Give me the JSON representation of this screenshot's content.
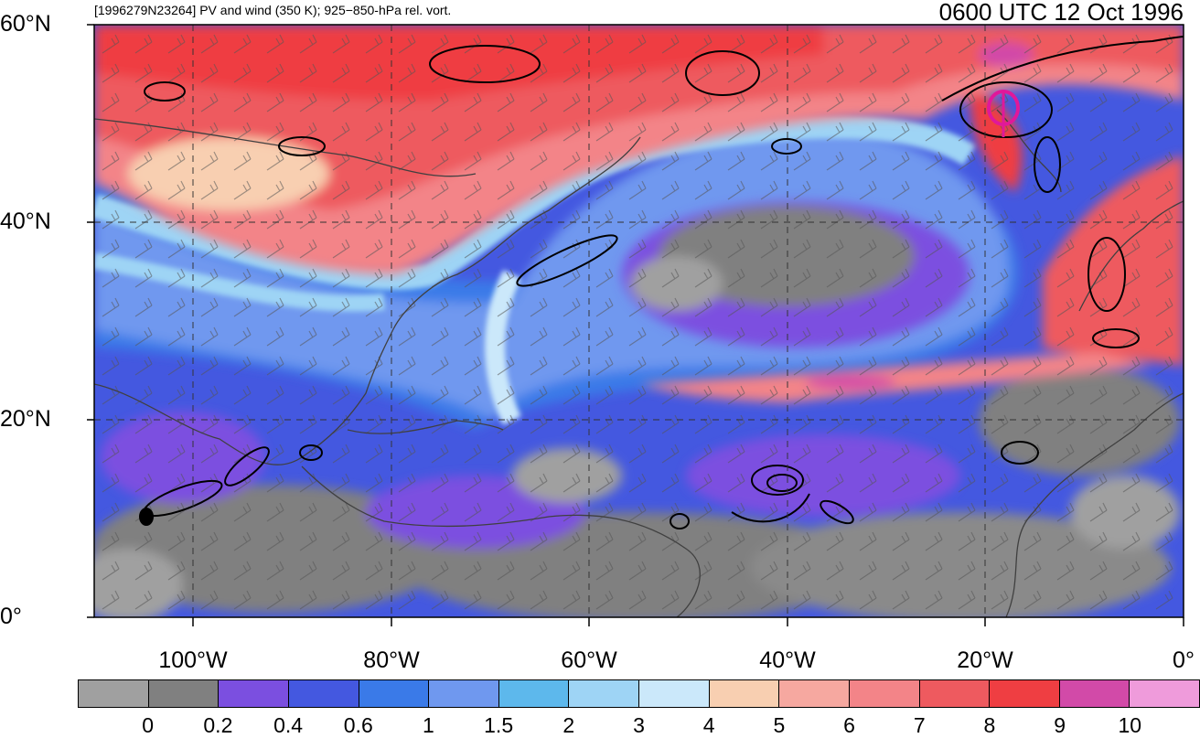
{
  "header": {
    "subtitle": "[1996279N23264] PV and wind (350 K); 925−850-hPa rel. vort.",
    "valid_time": "0600 UTC 12 Oct 1996"
  },
  "axes": {
    "lat_labels": [
      "60°N",
      "40°N",
      "20°N",
      "0°"
    ],
    "lon_labels": [
      "100°W",
      "80°W",
      "60°W",
      "40°W",
      "20°W",
      "0°"
    ],
    "lat_values": [
      60,
      40,
      20,
      0
    ],
    "lon_values": [
      -100,
      -80,
      -60,
      -40,
      -20,
      0
    ],
    "lon_range": [
      -110,
      0
    ],
    "lat_range": [
      0,
      60
    ]
  },
  "colorbar": {
    "labels": [
      "0",
      "0.2",
      "0.4",
      "0.6",
      "1",
      "1.5",
      "2",
      "3",
      "4",
      "5",
      "6",
      "7",
      "8",
      "9",
      "10"
    ],
    "colors": [
      "#a0a0a0",
      "#808080",
      "#7b4fe0",
      "#4458e0",
      "#3a7ae8",
      "#6f98ef",
      "#5db8ec",
      "#9ed4f5",
      "#cbe8fa",
      "#f8cfb1",
      "#f6a8a0",
      "#f38488",
      "#ee5a5f",
      "#ef3e42",
      "#d24aa8",
      "#ef9bdb"
    ]
  },
  "map_colors": {
    "ocean_low": "#808080",
    "tropics": "#4458e0",
    "jet_blue": "#3a7ae8",
    "jet_light": "#9ed4f5",
    "midlat_red": "#ef3e42",
    "midlat_pink": "#f38488",
    "contour": "#000000",
    "coast": "#404040",
    "marker": "#e0189a"
  }
}
